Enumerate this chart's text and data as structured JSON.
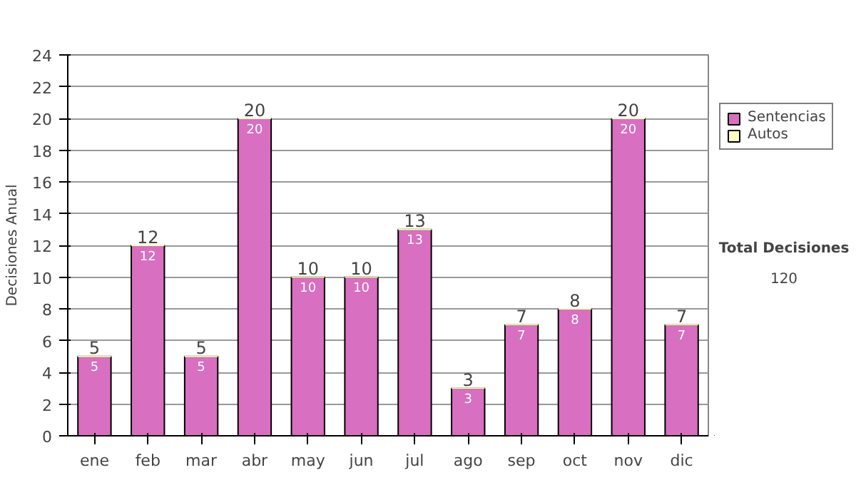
{
  "chart_data": {
    "type": "bar",
    "ylabel": "Decisiones Anual",
    "categories": [
      "ene",
      "feb",
      "mar",
      "abr",
      "may",
      "jun",
      "jul",
      "ago",
      "sep",
      "oct",
      "nov",
      "dic"
    ],
    "series": [
      {
        "name": "Sentencias",
        "color": "#d86fc0",
        "values": [
          5,
          12,
          5,
          20,
          10,
          10,
          13,
          3,
          7,
          8,
          20,
          7
        ],
        "value_labels": [
          "5",
          "12",
          "5",
          "20",
          "10",
          "10",
          "13",
          "3",
          "7",
          "8",
          "20",
          "7"
        ]
      },
      {
        "name": "Autos",
        "color": "#ffffc0",
        "values": [
          0,
          0,
          0,
          0,
          0,
          0,
          0,
          0,
          0,
          0,
          0,
          0
        ]
      }
    ],
    "stacked": true,
    "totals": [
      "5",
      "12",
      "5",
      "20",
      "10",
      "10",
      "13",
      "3",
      "7",
      "8",
      "20",
      "7"
    ],
    "ylim": [
      0,
      24
    ],
    "yticks": [
      0,
      2,
      4,
      6,
      8,
      10,
      12,
      14,
      16,
      18,
      20,
      22,
      24
    ],
    "grid": "y",
    "legend": "right",
    "annotations": [
      "Total Decisiones",
      "120"
    ]
  }
}
